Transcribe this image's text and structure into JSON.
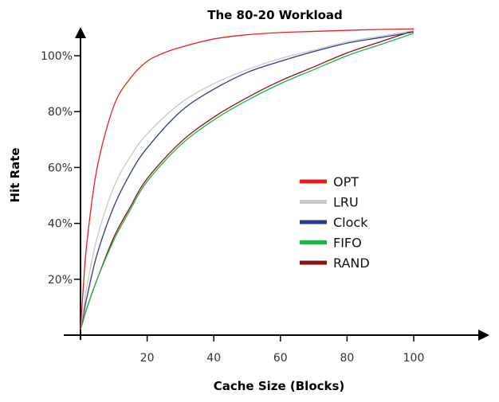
{
  "chart_data": {
    "type": "line",
    "title": "The 80-20 Workload",
    "xlabel": "Cache Size (Blocks)",
    "ylabel": "Hit Rate",
    "xlim": [
      0,
      120
    ],
    "ylim": [
      0,
      1.1
    ],
    "xticks": [
      20,
      40,
      60,
      80,
      100
    ],
    "xtick_labels": [
      "20",
      "40",
      "60",
      "80",
      "100"
    ],
    "yticks": [
      0.2,
      0.4,
      0.6,
      0.8,
      1.0
    ],
    "ytick_labels": [
      "20%",
      "40%",
      "60%",
      "80%",
      "100%"
    ],
    "legend_position": "center-right",
    "grid": false,
    "series": [
      {
        "name": "OPT",
        "color": "#e8201c",
        "x": [
          0,
          1,
          2,
          5,
          10,
          15,
          20,
          25,
          30,
          40,
          50,
          60,
          70,
          80,
          90,
          100
        ],
        "y": [
          0.02,
          0.2,
          0.34,
          0.6,
          0.82,
          0.92,
          0.98,
          1.01,
          1.03,
          1.06,
          1.075,
          1.083,
          1.087,
          1.091,
          1.094,
          1.096
        ]
      },
      {
        "name": "LRU",
        "color": "#c8c8c8",
        "x": [
          0,
          1,
          2,
          5,
          10,
          15,
          20,
          30,
          40,
          50,
          60,
          70,
          80,
          90,
          100
        ],
        "y": [
          0.02,
          0.1,
          0.18,
          0.35,
          0.53,
          0.64,
          0.72,
          0.83,
          0.9,
          0.95,
          0.99,
          1.02,
          1.05,
          1.07,
          1.09
        ]
      },
      {
        "name": "Clock",
        "color": "#2b3990",
        "x": [
          0,
          1,
          2,
          5,
          10,
          15,
          20,
          30,
          40,
          50,
          60,
          70,
          80,
          90,
          100
        ],
        "y": [
          0.02,
          0.08,
          0.14,
          0.29,
          0.46,
          0.58,
          0.67,
          0.8,
          0.88,
          0.94,
          0.98,
          1.015,
          1.045,
          1.065,
          1.085
        ]
      },
      {
        "name": "FIFO",
        "color": "#1db34a",
        "x": [
          0,
          1,
          2,
          5,
          10,
          15,
          20,
          30,
          40,
          50,
          60,
          70,
          80,
          90,
          100
        ],
        "y": [
          0.02,
          0.06,
          0.1,
          0.2,
          0.34,
          0.45,
          0.55,
          0.68,
          0.77,
          0.84,
          0.9,
          0.95,
          1.0,
          1.04,
          1.08
        ]
      },
      {
        "name": "RAND",
        "color": "#8b1010",
        "x": [
          0,
          1,
          2,
          5,
          10,
          15,
          20,
          30,
          40,
          50,
          60,
          70,
          80,
          90,
          100
        ],
        "y": [
          0.02,
          0.06,
          0.1,
          0.2,
          0.35,
          0.46,
          0.56,
          0.69,
          0.78,
          0.85,
          0.91,
          0.96,
          1.01,
          1.05,
          1.09
        ]
      }
    ]
  }
}
